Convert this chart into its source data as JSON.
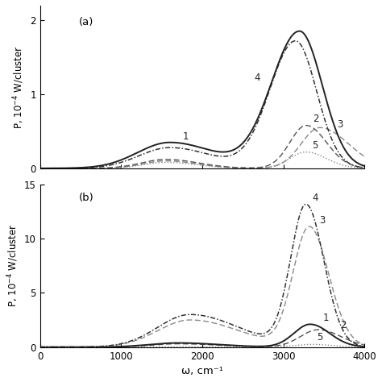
{
  "title_a": "(a)",
  "title_b": "(b)",
  "xlabel": "ω, cm⁻¹",
  "ylabel_a": "P, 10$^{-4}$ W/cluster",
  "ylabel_b": "P, 10$^{-4}$ W/cluster",
  "xlim": [
    0,
    4000
  ],
  "ylim_a": [
    0,
    2.2
  ],
  "ylim_b": [
    0,
    15
  ],
  "yticks_a": [
    0,
    1,
    2
  ],
  "yticks_b": [
    0,
    5,
    10,
    15
  ],
  "xticks": [
    0,
    1000,
    2000,
    3000,
    4000
  ],
  "background": "#ffffff"
}
